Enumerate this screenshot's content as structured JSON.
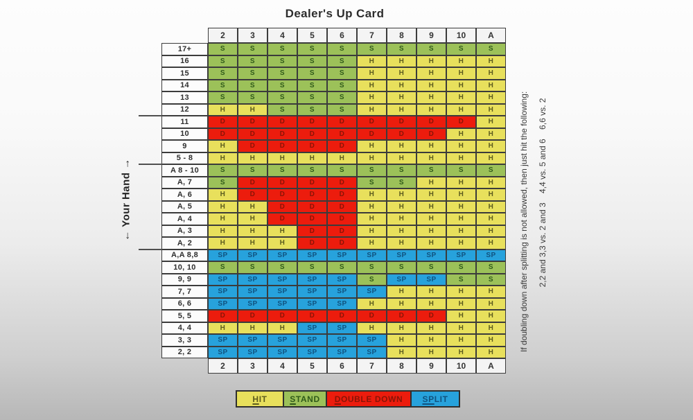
{
  "title": "Dealer's Up Card",
  "left_axis_label": "← Your Hand →",
  "side_note": {
    "line1": "If doubling down after splitting is not allowed, then just hit the following:",
    "line2": "2,2 and 3,3 vs. 2 and 3    4,4 vs. 5 and 6    6,6 vs. 2"
  },
  "actions": {
    "H": {
      "label": "Hit",
      "bg": "#e8e05c",
      "fg": "#5c5c1e"
    },
    "S": {
      "label": "Stand",
      "bg": "#9cc159",
      "fg": "#2f5a1a"
    },
    "D": {
      "label": "Double Down",
      "bg": "#ec1c0d",
      "fg": "#8a1406"
    },
    "SP": {
      "label": "Split",
      "bg": "#27a2dc",
      "fg": "#10527f"
    }
  },
  "legend": [
    {
      "code": "H",
      "prefix": "H",
      "rest": "IT"
    },
    {
      "code": "S",
      "prefix": "S",
      "rest": "TAND"
    },
    {
      "code": "D",
      "prefix": "D",
      "rest": "OUBLE DOWN"
    },
    {
      "code": "SP",
      "prefix": "SP",
      "rest": "LIT"
    }
  ],
  "chart_data": {
    "type": "table",
    "title": "Dealer's Up Card",
    "x_axis_label": "Dealer's Up Card",
    "y_axis_label": "Your Hand",
    "columns": [
      "2",
      "3",
      "4",
      "5",
      "6",
      "7",
      "8",
      "9",
      "10",
      "A"
    ],
    "rows": [
      {
        "label": "17+",
        "cells": [
          "S",
          "S",
          "S",
          "S",
          "S",
          "S",
          "S",
          "S",
          "S",
          "S"
        ]
      },
      {
        "label": "16",
        "cells": [
          "S",
          "S",
          "S",
          "S",
          "S",
          "H",
          "H",
          "H",
          "H",
          "H"
        ]
      },
      {
        "label": "15",
        "cells": [
          "S",
          "S",
          "S",
          "S",
          "S",
          "H",
          "H",
          "H",
          "H",
          "H"
        ]
      },
      {
        "label": "14",
        "cells": [
          "S",
          "S",
          "S",
          "S",
          "S",
          "H",
          "H",
          "H",
          "H",
          "H"
        ]
      },
      {
        "label": "13",
        "cells": [
          "S",
          "S",
          "S",
          "S",
          "S",
          "H",
          "H",
          "H",
          "H",
          "H"
        ]
      },
      {
        "label": "12",
        "cells": [
          "H",
          "H",
          "S",
          "S",
          "S",
          "H",
          "H",
          "H",
          "H",
          "H"
        ]
      },
      {
        "label": "11",
        "cells": [
          "D",
          "D",
          "D",
          "D",
          "D",
          "D",
          "D",
          "D",
          "D",
          "H"
        ]
      },
      {
        "label": "10",
        "cells": [
          "D",
          "D",
          "D",
          "D",
          "D",
          "D",
          "D",
          "D",
          "H",
          "H"
        ]
      },
      {
        "label": "9",
        "cells": [
          "H",
          "D",
          "D",
          "D",
          "D",
          "H",
          "H",
          "H",
          "H",
          "H"
        ]
      },
      {
        "label": "5 - 8",
        "cells": [
          "H",
          "H",
          "H",
          "H",
          "H",
          "H",
          "H",
          "H",
          "H",
          "H"
        ]
      },
      {
        "label": "A 8 - 10",
        "cells": [
          "S",
          "S",
          "S",
          "S",
          "S",
          "S",
          "S",
          "S",
          "S",
          "S"
        ]
      },
      {
        "label": "A, 7",
        "cells": [
          "S",
          "D",
          "D",
          "D",
          "D",
          "S",
          "S",
          "H",
          "H",
          "H"
        ]
      },
      {
        "label": "A, 6",
        "cells": [
          "H",
          "D",
          "D",
          "D",
          "D",
          "H",
          "H",
          "H",
          "H",
          "H"
        ]
      },
      {
        "label": "A, 5",
        "cells": [
          "H",
          "H",
          "D",
          "D",
          "D",
          "H",
          "H",
          "H",
          "H",
          "H"
        ]
      },
      {
        "label": "A, 4",
        "cells": [
          "H",
          "H",
          "D",
          "D",
          "D",
          "H",
          "H",
          "H",
          "H",
          "H"
        ]
      },
      {
        "label": "A, 3",
        "cells": [
          "H",
          "H",
          "H",
          "D",
          "D",
          "H",
          "H",
          "H",
          "H",
          "H"
        ]
      },
      {
        "label": "A, 2",
        "cells": [
          "H",
          "H",
          "H",
          "D",
          "D",
          "H",
          "H",
          "H",
          "H",
          "H"
        ]
      },
      {
        "label": "A,A 8,8",
        "cells": [
          "SP",
          "SP",
          "SP",
          "SP",
          "SP",
          "SP",
          "SP",
          "SP",
          "SP",
          "SP"
        ]
      },
      {
        "label": "10, 10",
        "cells": [
          "S",
          "S",
          "S",
          "S",
          "S",
          "S",
          "S",
          "S",
          "S",
          "S"
        ]
      },
      {
        "label": "9, 9",
        "cells": [
          "SP",
          "SP",
          "SP",
          "SP",
          "SP",
          "S",
          "SP",
          "SP",
          "S",
          "S"
        ]
      },
      {
        "label": "7, 7",
        "cells": [
          "SP",
          "SP",
          "SP",
          "SP",
          "SP",
          "SP",
          "H",
          "H",
          "H",
          "H"
        ]
      },
      {
        "label": "6, 6",
        "cells": [
          "SP",
          "SP",
          "SP",
          "SP",
          "SP",
          "H",
          "H",
          "H",
          "H",
          "H"
        ]
      },
      {
        "label": "5, 5",
        "cells": [
          "D",
          "D",
          "D",
          "D",
          "D",
          "D",
          "D",
          "D",
          "H",
          "H"
        ]
      },
      {
        "label": "4, 4",
        "cells": [
          "H",
          "H",
          "H",
          "SP",
          "SP",
          "H",
          "H",
          "H",
          "H",
          "H"
        ]
      },
      {
        "label": "3, 3",
        "cells": [
          "SP",
          "SP",
          "SP",
          "SP",
          "SP",
          "SP",
          "H",
          "H",
          "H",
          "H"
        ]
      },
      {
        "label": "2, 2",
        "cells": [
          "SP",
          "SP",
          "SP",
          "SP",
          "SP",
          "SP",
          "H",
          "H",
          "H",
          "H"
        ]
      }
    ],
    "section_break_rows": [
      6,
      10,
      17
    ],
    "legend_position": "bottom",
    "grid": true
  }
}
